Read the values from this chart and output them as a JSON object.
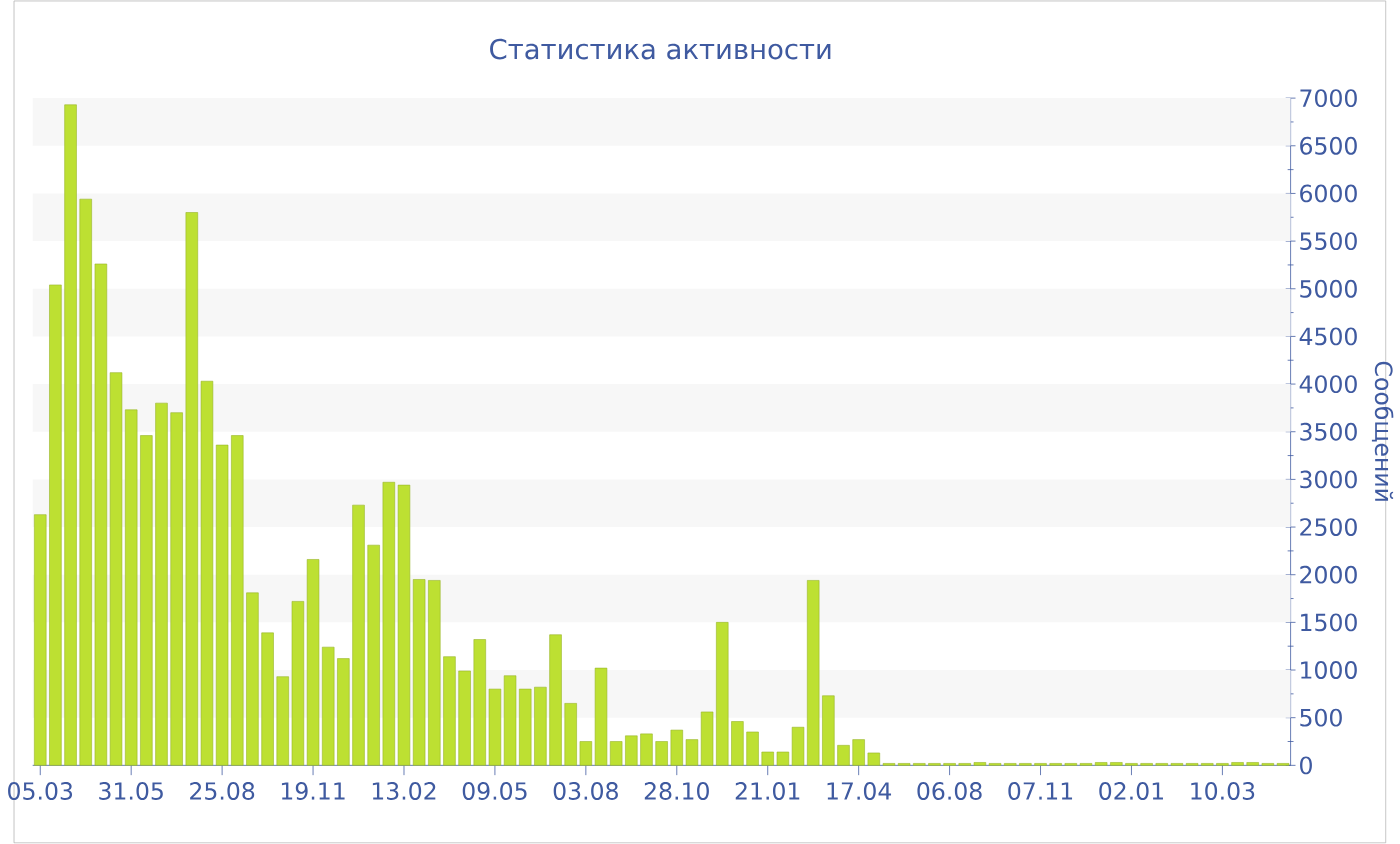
{
  "chart_data": {
    "type": "bar",
    "title": "Статистика активности",
    "ylabel": "Сообщений",
    "categories": [
      "05.03",
      null,
      null,
      null,
      null,
      null,
      "31.05",
      null,
      null,
      null,
      null,
      null,
      "25.08",
      null,
      null,
      null,
      null,
      null,
      "19.11",
      null,
      null,
      null,
      null,
      null,
      "13.02",
      null,
      null,
      null,
      null,
      null,
      "09.05",
      null,
      null,
      null,
      null,
      null,
      "03.08",
      null,
      null,
      null,
      null,
      null,
      "28.10",
      null,
      null,
      null,
      null,
      null,
      "21.01",
      null,
      null,
      null,
      null,
      null,
      "17.04",
      null,
      null,
      null,
      null,
      null,
      "06.08",
      null,
      null,
      null,
      null,
      null,
      "07.11",
      null,
      null,
      null,
      null,
      null,
      "02.01",
      null,
      null,
      null,
      null,
      null,
      "10.03",
      null,
      null,
      null,
      null
    ],
    "values": [
      2630,
      5040,
      6930,
      5940,
      5260,
      4120,
      3730,
      3460,
      3800,
      3700,
      5800,
      4030,
      3360,
      3460,
      1810,
      1390,
      930,
      1720,
      2160,
      1240,
      1120,
      2730,
      2310,
      2970,
      2940,
      1950,
      1940,
      1140,
      990,
      1320,
      800,
      940,
      800,
      820,
      1370,
      650,
      250,
      1020,
      250,
      310,
      330,
      250,
      370,
      270,
      560,
      1500,
      460,
      350,
      140,
      140,
      400,
      1940,
      730,
      210,
      270,
      130,
      20,
      20,
      20,
      20,
      20,
      20,
      30,
      20,
      20,
      20,
      20,
      20,
      20,
      20,
      30,
      30,
      20,
      20,
      20,
      20,
      20,
      20,
      20,
      30,
      30,
      20,
      20
    ],
    "color": "#bde032",
    "ylim": [
      0,
      7000
    ],
    "yticks": [
      0,
      500,
      1000,
      1500,
      2000,
      2500,
      3000,
      3500,
      4000,
      4500,
      5000,
      5500,
      6000,
      6500,
      7000
    ],
    "bands": [
      {
        "axis": "y",
        "from": 500,
        "to": 1000,
        "color": "#f7f7f7"
      },
      {
        "axis": "y",
        "from": 1500,
        "to": 2000,
        "color": "#f7f7f7"
      },
      {
        "axis": "y",
        "from": 2500,
        "to": 3000,
        "color": "#f7f7f7"
      },
      {
        "axis": "y",
        "from": 3500,
        "to": 4000,
        "color": "#f7f7f7"
      },
      {
        "axis": "y",
        "from": 4500,
        "to": 5000,
        "color": "#f7f7f7"
      },
      {
        "axis": "y",
        "from": 5500,
        "to": 6000,
        "color": "#f7f7f7"
      },
      {
        "axis": "y",
        "from": 6500,
        "to": 7000,
        "color": "#f7f7f7"
      }
    ]
  }
}
